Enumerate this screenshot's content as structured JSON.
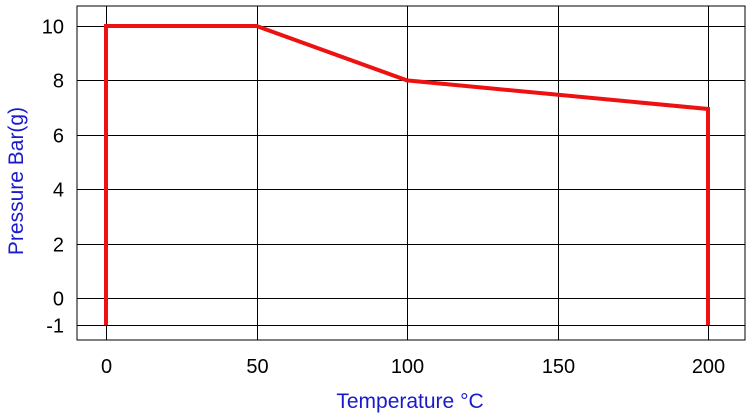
{
  "chart_data": {
    "type": "line",
    "title": "",
    "xlabel": "Temperature °C",
    "ylabel": "Pressure Bar(g)",
    "xlim": [
      -10,
      212
    ],
    "ylim": [
      -1,
      10.8
    ],
    "x_ticks": [
      "0",
      "50",
      "100",
      "150",
      "200"
    ],
    "y_ticks": [
      "10",
      "8",
      "6",
      "4",
      "2",
      "0",
      "-1"
    ],
    "grid": true,
    "legend": "none",
    "series": [
      {
        "x": [
          0,
          0,
          50,
          100,
          200,
          200
        ],
        "y": [
          -1,
          10,
          10,
          8,
          6.95,
          -1
        ]
      }
    ]
  },
  "colors": {
    "series": "#ee1111",
    "label": "#1a1acc",
    "grid": "#000000"
  }
}
